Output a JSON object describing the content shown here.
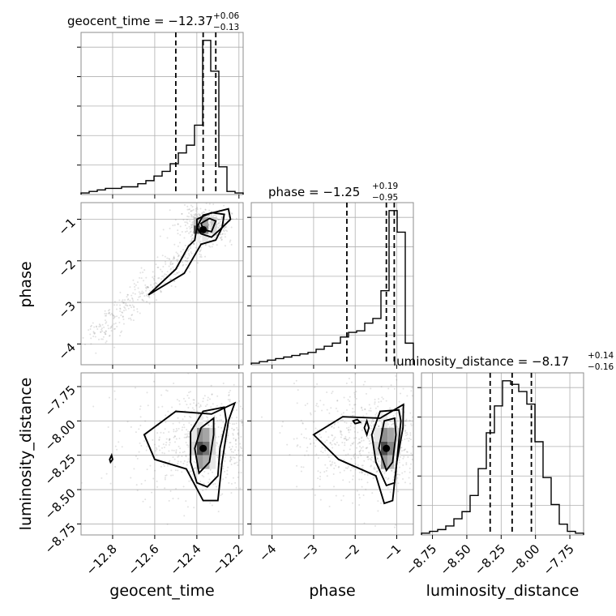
{
  "chart_data": {
    "type": "corner",
    "parameters": [
      {
        "name": "geocent_time",
        "label": "geocent_time",
        "title_main": "geocent_time = −12.37",
        "title_sup": "+0.06",
        "title_sub": "−0.13",
        "range": [
          -12.95,
          -12.18
        ],
        "ticks": [
          -12.8,
          -12.6,
          -12.4,
          -12.2
        ],
        "tick_labels": [
          "−12.8",
          "−12.6",
          "−12.4",
          "−12.2"
        ],
        "quantiles": [
          -12.5,
          -12.37,
          -12.31
        ],
        "hist_edges": [
          -12.95,
          -12.9115,
          -12.873,
          -12.8345,
          -12.796,
          -12.7575,
          -12.719,
          -12.6805,
          -12.642,
          -12.6035,
          -12.565,
          -12.5265,
          -12.488,
          -12.4495,
          -12.411,
          -12.3725,
          -12.334,
          -12.2955,
          -12.257,
          -12.2185,
          -12.18
        ],
        "hist_counts": [
          1,
          2,
          3,
          4,
          4,
          5,
          5,
          7,
          9,
          12,
          15,
          20,
          27,
          32,
          45,
          100,
          80,
          18,
          2,
          1
        ],
        "hist_max": 100
      },
      {
        "name": "phase",
        "label": "phase",
        "title_main": "phase = −1.25",
        "title_sup": "+0.19",
        "title_sub": "−0.95",
        "range": [
          -4.5,
          -0.6
        ],
        "ticks": [
          -4,
          -3,
          -2,
          -1
        ],
        "tick_labels": [
          "−4",
          "−3",
          "−2",
          "−1"
        ],
        "quantiles": [
          -2.2,
          -1.25,
          -1.06
        ],
        "hist_edges": [
          -4.5,
          -4.305,
          -4.11,
          -3.915,
          -3.72,
          -3.525,
          -3.33,
          -3.135,
          -2.94,
          -2.745,
          -2.55,
          -2.355,
          -2.16,
          -1.965,
          -1.77,
          -1.575,
          -1.38,
          -1.185,
          -0.99,
          -0.795,
          -0.6
        ],
        "hist_counts": [
          1,
          2,
          3,
          4,
          5,
          6,
          7,
          8,
          10,
          12,
          14,
          18,
          21,
          22,
          27,
          30,
          48,
          100,
          86,
          14
        ],
        "hist_max": 100
      },
      {
        "name": "luminosity_distance",
        "label": "luminosity_distance",
        "title_main": "luminosity_distance = −8.17",
        "title_sup": "+0.14",
        "title_sub": "−0.16",
        "range": [
          -8.83,
          -7.65
        ],
        "ticks": [
          -8.75,
          -8.5,
          -8.25,
          -8.0,
          -7.75
        ],
        "tick_labels": [
          "−8.75",
          "−8.50",
          "−8.25",
          "−8.00",
          "−7.75"
        ],
        "quantiles": [
          -8.33,
          -8.17,
          -8.03
        ],
        "hist_edges": [
          -8.83,
          -8.771,
          -8.712,
          -8.653,
          -8.594,
          -8.535,
          -8.476,
          -8.417,
          -8.358,
          -8.299,
          -8.24,
          -8.181,
          -8.122,
          -8.063,
          -8.004,
          -7.945,
          -7.886,
          -7.827,
          -7.768,
          -7.709,
          -7.65
        ],
        "hist_counts": [
          1,
          2,
          3,
          5,
          9,
          13,
          22,
          37,
          57,
          72,
          86,
          84,
          80,
          73,
          52,
          32,
          17,
          6,
          2,
          1
        ],
        "hist_max": 86
      }
    ],
    "pairs": [
      {
        "x": "geocent_time",
        "y": "phase",
        "peak": [
          -12.37,
          -1.25
        ],
        "contours": [
          [
            [
              -12.63,
              -2.82
            ],
            [
              -12.5,
              -2.2
            ],
            [
              -12.44,
              -1.65
            ],
            [
              -12.41,
              -1.5
            ],
            [
              -12.4,
              -1.2
            ],
            [
              -12.37,
              -0.9
            ],
            [
              -12.25,
              -0.75
            ],
            [
              -12.24,
              -1.0
            ],
            [
              -12.28,
              -1.2
            ],
            [
              -12.31,
              -1.5
            ],
            [
              -12.38,
              -1.6
            ],
            [
              -12.46,
              -2.3
            ],
            [
              -12.63,
              -2.82
            ]
          ],
          [
            [
              -12.4,
              -1.0
            ],
            [
              -12.33,
              -0.84
            ],
            [
              -12.27,
              -0.88
            ],
            [
              -12.28,
              -1.2
            ],
            [
              -12.33,
              -1.43
            ],
            [
              -12.38,
              -1.35
            ],
            [
              -12.4,
              -1.2
            ],
            [
              -12.4,
              -1.0
            ]
          ],
          [
            [
              -12.38,
              -1.1
            ],
            [
              -12.34,
              -0.98
            ],
            [
              -12.31,
              -1.04
            ],
            [
              -12.33,
              -1.3
            ],
            [
              -12.37,
              -1.25
            ],
            [
              -12.38,
              -1.1
            ]
          ]
        ],
        "heat_cells": [
          [
            -12.4,
            -1.25,
            0.85
          ],
          [
            -12.36,
            -1.25,
            0.6
          ],
          [
            -12.36,
            -1.05,
            0.45
          ],
          [
            -12.32,
            -1.05,
            0.25
          ],
          [
            -12.4,
            -1.05,
            0.3
          ],
          [
            -12.32,
            -1.25,
            0.2
          ],
          [
            -12.36,
            -1.45,
            0.12
          ],
          [
            -12.4,
            -1.45,
            0.08
          ]
        ]
      },
      {
        "x": "geocent_time",
        "y": "luminosity_distance",
        "peak": [
          -12.37,
          -8.2
        ],
        "contours": [
          [
            [
              -12.65,
              -8.1
            ],
            [
              -12.5,
              -7.93
            ],
            [
              -12.33,
              -7.95
            ],
            [
              -12.22,
              -7.87
            ],
            [
              -12.25,
              -8.0
            ],
            [
              -12.28,
              -8.3
            ],
            [
              -12.3,
              -8.58
            ],
            [
              -12.37,
              -8.58
            ],
            [
              -12.45,
              -8.35
            ],
            [
              -12.6,
              -8.28
            ],
            [
              -12.65,
              -8.1
            ]
          ],
          [
            [
              -12.43,
              -8.08
            ],
            [
              -12.37,
              -7.93
            ],
            [
              -12.27,
              -7.9
            ],
            [
              -12.26,
              -8.0
            ],
            [
              -12.29,
              -8.2
            ],
            [
              -12.3,
              -8.4
            ],
            [
              -12.35,
              -8.48
            ],
            [
              -12.4,
              -8.45
            ],
            [
              -12.43,
              -8.3
            ],
            [
              -12.43,
              -8.08
            ]
          ],
          [
            [
              -12.41,
              -8.2
            ],
            [
              -12.38,
              -8.05
            ],
            [
              -12.32,
              -7.98
            ],
            [
              -12.32,
              -8.1
            ],
            [
              -12.34,
              -8.3
            ],
            [
              -12.39,
              -8.38
            ],
            [
              -12.41,
              -8.2
            ]
          ],
          [
            [
              -12.814,
              -8.28
            ],
            [
              -12.805,
              -8.25
            ],
            [
              -12.8,
              -8.28
            ],
            [
              -12.81,
              -8.3
            ],
            [
              -12.814,
              -8.28
            ]
          ]
        ],
        "heat_cells": [
          [
            -12.385,
            -8.2,
            0.9
          ],
          [
            -12.355,
            -8.2,
            0.7
          ],
          [
            -12.385,
            -8.1,
            0.55
          ],
          [
            -12.355,
            -8.1,
            0.45
          ],
          [
            -12.385,
            -8.3,
            0.5
          ],
          [
            -12.355,
            -8.3,
            0.4
          ],
          [
            -12.325,
            -8.1,
            0.2
          ],
          [
            -12.325,
            -8.2,
            0.2
          ],
          [
            -12.415,
            -8.2,
            0.2
          ],
          [
            -12.415,
            -8.1,
            0.12
          ],
          [
            -12.325,
            -8.3,
            0.12
          ],
          [
            -12.385,
            -8.0,
            0.1
          ]
        ]
      },
      {
        "x": "phase",
        "y": "luminosity_distance",
        "peak": [
          -1.25,
          -8.2
        ],
        "contours": [
          [
            [
              -3.0,
              -8.1
            ],
            [
              -2.3,
              -7.97
            ],
            [
              -1.4,
              -7.98
            ],
            [
              -0.84,
              -7.88
            ],
            [
              -0.85,
              -8.05
            ],
            [
              -1.0,
              -8.3
            ],
            [
              -1.1,
              -8.58
            ],
            [
              -1.3,
              -8.6
            ],
            [
              -1.5,
              -8.4
            ],
            [
              -2.4,
              -8.28
            ],
            [
              -3.0,
              -8.1
            ]
          ],
          [
            [
              -1.6,
              -8.1
            ],
            [
              -1.4,
              -7.93
            ],
            [
              -0.95,
              -7.92
            ],
            [
              -0.9,
              -8.0
            ],
            [
              -1.0,
              -8.3
            ],
            [
              -1.05,
              -8.45
            ],
            [
              -1.25,
              -8.47
            ],
            [
              -1.5,
              -8.3
            ],
            [
              -1.6,
              -8.1
            ]
          ],
          [
            [
              -1.43,
              -8.2
            ],
            [
              -1.3,
              -8.0
            ],
            [
              -1.05,
              -7.98
            ],
            [
              -1.02,
              -8.1
            ],
            [
              -1.1,
              -8.3
            ],
            [
              -1.25,
              -8.36
            ],
            [
              -1.43,
              -8.2
            ]
          ],
          [
            [
              -2.05,
              -8.0
            ],
            [
              -1.95,
              -7.99
            ],
            [
              -1.88,
              -8.01
            ],
            [
              -2.0,
              -8.02
            ],
            [
              -2.05,
              -8.0
            ]
          ],
          [
            [
              -1.78,
              -8.05
            ],
            [
              -1.72,
              -8.0
            ],
            [
              -1.67,
              -8.05
            ],
            [
              -1.72,
              -8.1
            ],
            [
              -1.78,
              -8.05
            ]
          ]
        ],
        "heat_cells": [
          [
            -1.3,
            -8.2,
            0.9
          ],
          [
            -1.14,
            -8.2,
            0.6
          ],
          [
            -1.3,
            -8.1,
            0.55
          ],
          [
            -1.14,
            -8.1,
            0.45
          ],
          [
            -1.3,
            -8.3,
            0.5
          ],
          [
            -1.14,
            -8.3,
            0.35
          ],
          [
            -1.46,
            -8.2,
            0.2
          ],
          [
            -0.98,
            -8.1,
            0.2
          ],
          [
            -1.46,
            -8.1,
            0.12
          ],
          [
            -0.98,
            -8.2,
            0.12
          ],
          [
            -1.3,
            -8.0,
            0.1
          ]
        ]
      }
    ],
    "grid": true
  }
}
